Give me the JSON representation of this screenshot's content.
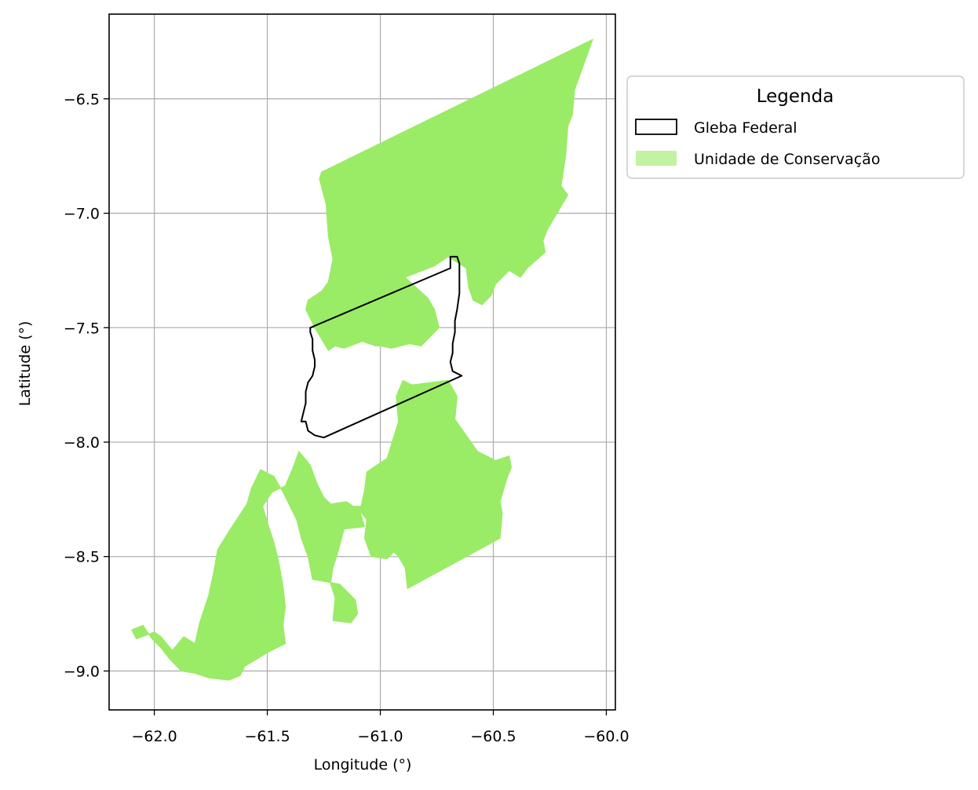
{
  "map": {
    "xlabel": "Longitude (°)",
    "ylabel": "Latitude (°)",
    "xlim": [
      -62.2,
      -59.96
    ],
    "ylim": [
      -9.17,
      -6.13
    ],
    "xticks": [
      -62.0,
      -61.5,
      -61.0,
      -60.5,
      -60.0
    ],
    "xtick_labels": [
      "−62.0",
      "−61.5",
      "−61.0",
      "−60.5",
      "−60.0"
    ],
    "yticks": [
      -6.5,
      -7.0,
      -7.5,
      -8.0,
      -8.5,
      -9.0
    ],
    "ytick_labels": [
      "−6.5",
      "−7.0",
      "−7.5",
      "−8.0",
      "−8.5",
      "−9.0"
    ],
    "grid": true
  },
  "legend": {
    "title": "Legenda",
    "placement": "outside upper right",
    "items": [
      {
        "label": "Gleba Federal",
        "kind": "outline",
        "edge_color": "#000000"
      },
      {
        "label": "Unidade de Conservação",
        "kind": "fill",
        "fill_color": "#9aeb66"
      }
    ]
  },
  "chart_data": {
    "type": "map",
    "layers": [
      {
        "name": "Unidade de Conservação",
        "fill": "#9aeb66",
        "polygons": [
          [
            [
              -60.89,
              -7.28
            ],
            [
              -60.88,
              -7.14
            ],
            [
              -60.94,
              -7.01
            ],
            [
              -60.94,
              -6.93
            ],
            [
              -60.85,
              -6.88
            ],
            [
              -60.79,
              -6.79
            ],
            [
              -60.71,
              -6.65
            ],
            [
              -60.64,
              -6.52
            ],
            [
              -60.06,
              -6.24
            ],
            [
              -60.1,
              -6.35
            ],
            [
              -60.14,
              -6.46
            ],
            [
              -60.15,
              -6.57
            ],
            [
              -60.17,
              -6.62
            ],
            [
              -60.18,
              -6.75
            ],
            [
              -60.2,
              -6.88
            ],
            [
              -60.17,
              -6.92
            ],
            [
              -60.26,
              -7.07
            ],
            [
              -60.28,
              -7.12
            ],
            [
              -60.27,
              -7.17
            ],
            [
              -60.35,
              -7.24
            ],
            [
              -60.38,
              -7.28
            ],
            [
              -60.43,
              -7.25
            ],
            [
              -60.47,
              -7.29
            ],
            [
              -60.49,
              -7.31
            ],
            [
              -60.51,
              -7.36
            ],
            [
              -60.55,
              -7.4
            ],
            [
              -60.59,
              -7.38
            ],
            [
              -60.61,
              -7.32
            ],
            [
              -60.62,
              -7.24
            ],
            [
              -60.7,
              -7.19
            ],
            [
              -60.76,
              -7.23
            ]
          ],
          [
            [
              -61.26,
              -6.82
            ],
            [
              -60.64,
              -6.52
            ],
            [
              -60.71,
              -6.65
            ],
            [
              -60.79,
              -6.79
            ],
            [
              -60.85,
              -6.88
            ],
            [
              -60.94,
              -6.93
            ],
            [
              -60.94,
              -7.01
            ],
            [
              -60.88,
              -7.14
            ],
            [
              -60.89,
              -7.28
            ],
            [
              -60.79,
              -7.37
            ],
            [
              -60.76,
              -7.42
            ],
            [
              -60.74,
              -7.5
            ],
            [
              -60.82,
              -7.58
            ],
            [
              -60.87,
              -7.57
            ],
            [
              -60.95,
              -7.59
            ],
            [
              -61.0,
              -7.58
            ],
            [
              -61.02,
              -7.58
            ],
            [
              -61.08,
              -7.56
            ],
            [
              -61.16,
              -7.59
            ],
            [
              -61.2,
              -7.58
            ],
            [
              -61.23,
              -7.6
            ],
            [
              -61.29,
              -7.5
            ],
            [
              -61.33,
              -7.42
            ],
            [
              -61.32,
              -7.38
            ],
            [
              -61.26,
              -7.34
            ],
            [
              -61.23,
              -7.3
            ],
            [
              -61.21,
              -7.2
            ],
            [
              -61.23,
              -7.1
            ],
            [
              -61.24,
              -6.96
            ],
            [
              -61.27,
              -6.85
            ]
          ],
          [
            [
              -60.9,
              -7.73
            ],
            [
              -60.86,
              -7.75
            ],
            [
              -60.7,
              -7.73
            ],
            [
              -60.66,
              -7.8
            ],
            [
              -60.67,
              -7.9
            ],
            [
              -60.62,
              -7.97
            ],
            [
              -60.57,
              -8.04
            ],
            [
              -60.49,
              -8.08
            ],
            [
              -60.43,
              -8.06
            ],
            [
              -60.42,
              -8.11
            ],
            [
              -60.44,
              -8.16
            ],
            [
              -60.47,
              -8.26
            ],
            [
              -60.46,
              -8.31
            ],
            [
              -60.47,
              -8.42
            ],
            [
              -60.88,
              -8.64
            ],
            [
              -60.89,
              -8.55
            ],
            [
              -60.92,
              -8.5
            ],
            [
              -60.94,
              -8.48
            ],
            [
              -60.97,
              -8.51
            ],
            [
              -61.04,
              -8.5
            ],
            [
              -61.07,
              -8.42
            ],
            [
              -61.06,
              -8.34
            ],
            [
              -61.09,
              -8.3
            ],
            [
              -61.07,
              -8.21
            ],
            [
              -61.06,
              -8.13
            ],
            [
              -60.97,
              -8.07
            ],
            [
              -60.92,
              -7.91
            ],
            [
              -60.93,
              -7.8
            ]
          ],
          [
            [
              -61.36,
              -8.04
            ],
            [
              -61.31,
              -8.1
            ],
            [
              -61.28,
              -8.18
            ],
            [
              -61.25,
              -8.24
            ],
            [
              -61.22,
              -8.27
            ],
            [
              -61.15,
              -8.26
            ],
            [
              -61.12,
              -8.28
            ],
            [
              -61.07,
              -8.28
            ],
            [
              -61.09,
              -8.3
            ],
            [
              -61.07,
              -8.37
            ],
            [
              -61.16,
              -8.38
            ],
            [
              -61.19,
              -8.49
            ],
            [
              -61.21,
              -8.55
            ],
            [
              -61.22,
              -8.62
            ],
            [
              -61.2,
              -8.68
            ],
            [
              -61.21,
              -8.78
            ],
            [
              -61.13,
              -8.79
            ],
            [
              -61.1,
              -8.75
            ],
            [
              -61.11,
              -8.69
            ],
            [
              -61.18,
              -8.62
            ],
            [
              -61.3,
              -8.6
            ],
            [
              -61.32,
              -8.5
            ],
            [
              -61.35,
              -8.42
            ],
            [
              -61.37,
              -8.34
            ],
            [
              -61.43,
              -8.22
            ],
            [
              -61.47,
              -8.15
            ],
            [
              -61.53,
              -8.12
            ],
            [
              -61.57,
              -8.2
            ],
            [
              -61.59,
              -8.27
            ],
            [
              -61.63,
              -8.33
            ],
            [
              -61.67,
              -8.39
            ],
            [
              -61.72,
              -8.47
            ],
            [
              -61.74,
              -8.58
            ],
            [
              -61.76,
              -8.67
            ],
            [
              -61.8,
              -8.79
            ],
            [
              -61.82,
              -8.88
            ],
            [
              -61.87,
              -8.85
            ],
            [
              -61.92,
              -8.91
            ],
            [
              -61.97,
              -8.85
            ],
            [
              -62.0,
              -8.83
            ],
            [
              -62.08,
              -8.86
            ],
            [
              -62.1,
              -8.82
            ],
            [
              -62.05,
              -8.8
            ],
            [
              -62.01,
              -8.86
            ],
            [
              -61.97,
              -8.9
            ],
            [
              -61.93,
              -8.95
            ],
            [
              -61.88,
              -9.0
            ],
            [
              -61.82,
              -9.01
            ],
            [
              -61.76,
              -9.03
            ],
            [
              -61.67,
              -9.04
            ],
            [
              -61.62,
              -9.02
            ],
            [
              -61.6,
              -8.98
            ],
            [
              -61.55,
              -8.95
            ],
            [
              -61.5,
              -8.92
            ],
            [
              -61.42,
              -8.88
            ],
            [
              -61.43,
              -8.8
            ],
            [
              -61.42,
              -8.72
            ],
            [
              -61.43,
              -8.63
            ],
            [
              -61.45,
              -8.52
            ],
            [
              -61.47,
              -8.44
            ],
            [
              -61.5,
              -8.35
            ],
            [
              -61.52,
              -8.28
            ],
            [
              -61.48,
              -8.22
            ],
            [
              -61.42,
              -8.19
            ],
            [
              -61.39,
              -8.12
            ]
          ]
        ]
      },
      {
        "name": "Gleba Federal",
        "edge": "#000000",
        "polygon": [
          [
            -61.31,
            -7.5
          ],
          [
            -60.69,
            -7.24
          ],
          [
            -60.69,
            -7.19
          ],
          [
            -60.66,
            -7.19
          ],
          [
            -60.65,
            -7.22
          ],
          [
            -60.65,
            -7.28
          ],
          [
            -60.65,
            -7.35
          ],
          [
            -60.66,
            -7.42
          ],
          [
            -60.67,
            -7.47
          ],
          [
            -60.67,
            -7.52
          ],
          [
            -60.68,
            -7.57
          ],
          [
            -60.68,
            -7.61
          ],
          [
            -60.69,
            -7.65
          ],
          [
            -60.68,
            -7.69
          ],
          [
            -60.64,
            -7.71
          ],
          [
            -61.25,
            -7.98
          ],
          [
            -61.29,
            -7.97
          ],
          [
            -61.32,
            -7.95
          ],
          [
            -61.33,
            -7.91
          ],
          [
            -61.35,
            -7.91
          ],
          [
            -61.34,
            -7.87
          ],
          [
            -61.33,
            -7.83
          ],
          [
            -61.33,
            -7.78
          ],
          [
            -61.32,
            -7.74
          ],
          [
            -61.3,
            -7.71
          ],
          [
            -61.29,
            -7.67
          ],
          [
            -61.29,
            -7.64
          ],
          [
            -61.3,
            -7.6
          ],
          [
            -61.3,
            -7.55
          ],
          [
            -61.31,
            -7.52
          ]
        ]
      }
    ]
  }
}
